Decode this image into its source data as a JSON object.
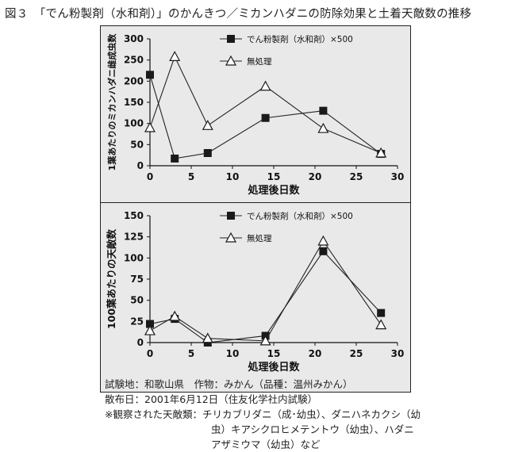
{
  "figure_title": "図３　「でん粉製剤（水和剤）」のかんきつ／ミカンハダニの防除効果と土着天敵数の推移",
  "chart_data": [
    {
      "type": "line",
      "ylabel": "1葉あたりのミカンハダニ雌成虫数",
      "xlabel": "処理後日数",
      "xlim": [
        0,
        30
      ],
      "ylim": [
        0,
        300
      ],
      "xticks": [
        "0",
        "5",
        "10",
        "15",
        "20",
        "25",
        "30"
      ],
      "yticks": [
        "0",
        "50",
        "100",
        "150",
        "200",
        "250",
        "300"
      ],
      "legend_placement": "top-right",
      "series": [
        {
          "name": "でん粉製剤（水和剤）×500",
          "marker": "square",
          "x": [
            0,
            3,
            7,
            14,
            21,
            28
          ],
          "y": [
            215,
            17,
            30,
            113,
            130,
            28
          ]
        },
        {
          "name": "無処理",
          "marker": "triangle",
          "x": [
            0,
            3,
            7,
            14,
            21,
            28
          ],
          "y": [
            90,
            258,
            95,
            188,
            88,
            30
          ]
        }
      ]
    },
    {
      "type": "line",
      "ylabel": "100葉あたりの天敵数",
      "xlabel": "処理後日数",
      "xlim": [
        0,
        30
      ],
      "ylim": [
        0,
        150
      ],
      "xticks": [
        "0",
        "5",
        "10",
        "15",
        "20",
        "25",
        "30"
      ],
      "yticks": [
        "0",
        "25",
        "50",
        "75",
        "100",
        "125",
        "150"
      ],
      "legend_placement": "top-right",
      "series": [
        {
          "name": "でん粉製剤（水和剤）×500",
          "marker": "square",
          "x": [
            0,
            3,
            7,
            14,
            21,
            28
          ],
          "y": [
            22,
            28,
            0,
            8,
            108,
            35
          ]
        },
        {
          "name": "無処理",
          "marker": "triangle",
          "x": [
            0,
            3,
            7,
            14,
            21,
            28
          ],
          "y": [
            14,
            31,
            5,
            2,
            120,
            21
          ]
        }
      ]
    }
  ],
  "notes": {
    "line1": "試験地：和歌山県　作物：みかん（品種：温州みかん）",
    "line2": "散布日：2001年6月12日（住友化学社内試験）",
    "line3": "※観察された天敵類：チリカブリダニ（成･幼虫）、ダニハネカクシ（幼",
    "line4": "虫）キアシクロヒメテントウ（幼虫）、ハダニ",
    "line5": "アザミウマ（幼虫）など"
  }
}
